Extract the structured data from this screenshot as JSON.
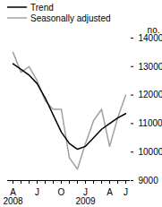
{
  "chart_data": {
    "type": "line",
    "y_label": "no.",
    "categories": [
      "A\n2008",
      null,
      null,
      "J",
      null,
      null,
      "O",
      null,
      null,
      "J\n2009",
      null,
      null,
      "A",
      null,
      "J"
    ],
    "series": [
      {
        "name": "Trend",
        "color": "#000000",
        "values": [
          13100,
          12900,
          12700,
          12400,
          11900,
          11300,
          10700,
          10300,
          10100,
          10200,
          10500,
          10800,
          11000,
          11200,
          11350
        ]
      },
      {
        "name": "Seasonally adjusted",
        "color": "#a0a0a0",
        "values": [
          13500,
          12800,
          13000,
          12500,
          11800,
          11500,
          11500,
          9800,
          9400,
          10300,
          11100,
          11500,
          10200,
          11200,
          12000
        ]
      }
    ],
    "ylim": [
      9000,
      14000
    ],
    "yticks": [
      9000,
      10000,
      11000,
      12000,
      13000,
      14000
    ],
    "legend": "top-left"
  }
}
